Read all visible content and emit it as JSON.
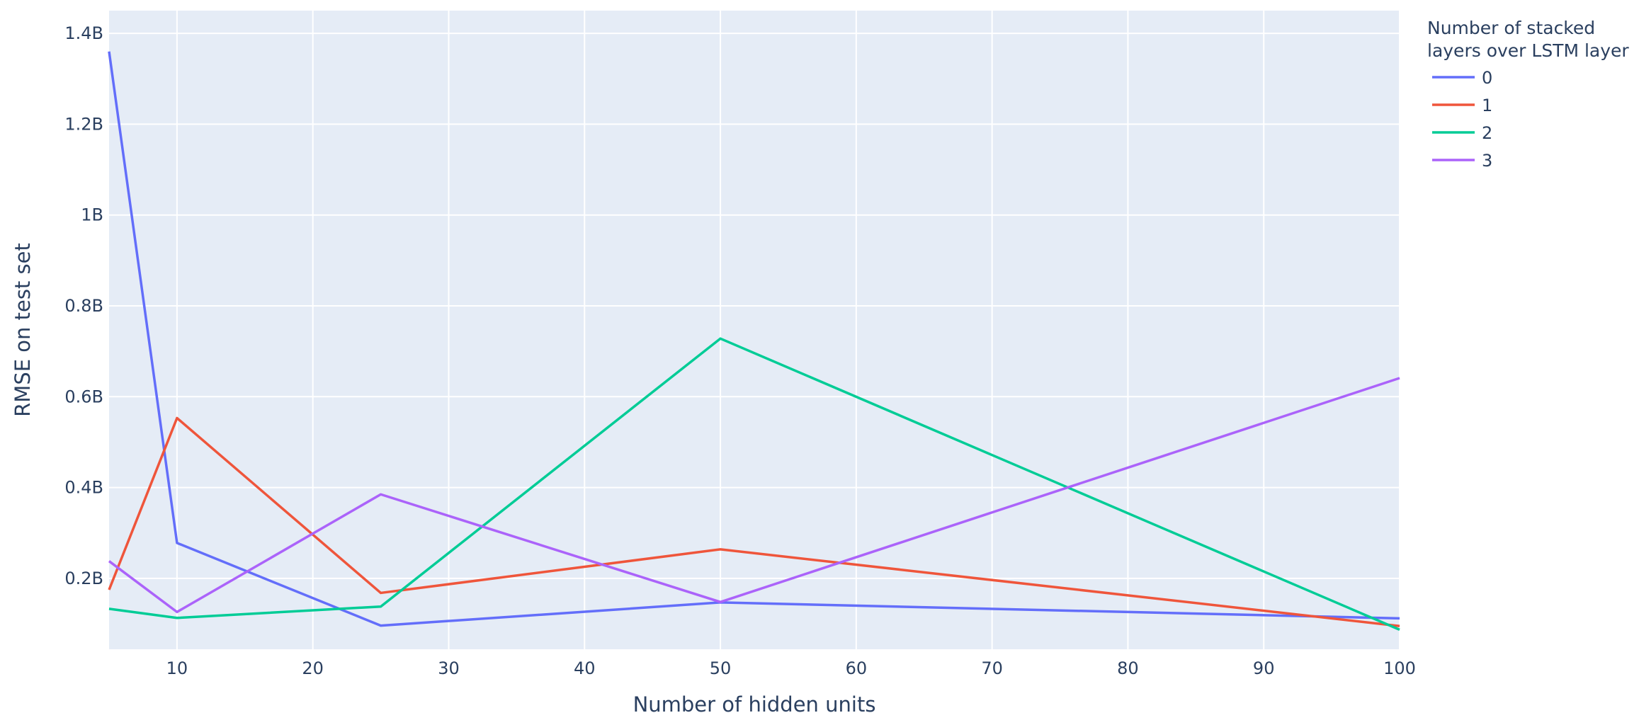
{
  "chart_data": {
    "type": "line",
    "xlabel": "Number of hidden units",
    "ylabel": "RMSE on test set",
    "x": [
      5,
      10,
      25,
      50,
      100
    ],
    "xlim": [
      5,
      100
    ],
    "ylim": [
      44000000,
      1450000000
    ],
    "x_ticks": [
      10,
      20,
      30,
      40,
      50,
      60,
      70,
      80,
      90,
      100
    ],
    "x_tick_labels": [
      "10",
      "20",
      "30",
      "40",
      "50",
      "60",
      "70",
      "80",
      "90",
      "100"
    ],
    "y_ticks": [
      200000000,
      400000000,
      600000000,
      800000000,
      1000000000,
      1200000000,
      1400000000
    ],
    "y_tick_labels": [
      "0.2B",
      "0.4B",
      "0.6B",
      "0.8B",
      "1B",
      "1.2B",
      "1.4B"
    ],
    "grid": true,
    "legend": {
      "title_lines": [
        "Number of stacked",
        "layers over LSTM layer"
      ],
      "placement": "right"
    },
    "series": [
      {
        "name": "0",
        "color": "#636efa",
        "values": [
          1360000000,
          278000000,
          96000000,
          147000000,
          112000000
        ]
      },
      {
        "name": "1",
        "color": "#ef553b",
        "values": [
          175000000,
          553000000,
          168000000,
          264000000,
          95000000
        ]
      },
      {
        "name": "2",
        "color": "#00cc96",
        "values": [
          133000000,
          113000000,
          138000000,
          728000000,
          87000000
        ]
      },
      {
        "name": "3",
        "color": "#ab63fa",
        "values": [
          238000000,
          126000000,
          385000000,
          148000000,
          641000000
        ]
      }
    ]
  }
}
